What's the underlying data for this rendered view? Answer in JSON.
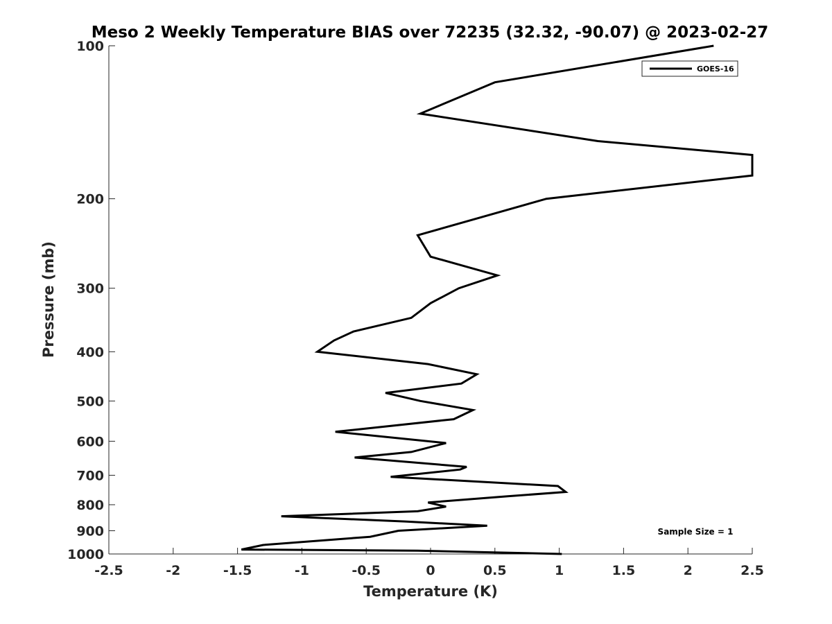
{
  "chart_data": {
    "type": "line",
    "title": "Meso 2 Weekly Temperature BIAS over 72235 (32.32, -90.07) @ 2023-02-27",
    "xlabel": "Temperature (K)",
    "ylabel": "Pressure (mb)",
    "xlim": [
      -2.5,
      2.5
    ],
    "ylim": [
      100,
      1000
    ],
    "y_scale": "log",
    "y_reversed": true,
    "grid": false,
    "legend_position": "top-right",
    "x_ticks": [
      "-2.5",
      "-2",
      "-1.5",
      "-1",
      "-0.5",
      "0",
      "0.5",
      "1",
      "1.5",
      "2",
      "2.5"
    ],
    "y_ticks": [
      "100",
      "200",
      "300",
      "400",
      "500",
      "600",
      "700",
      "800",
      "900",
      "1000"
    ],
    "annotation": "Sample Size = 1",
    "series": [
      {
        "name": "GOES-16",
        "color": "#000000",
        "points": [
          [
            2.2,
            100
          ],
          [
            0.5,
            118
          ],
          [
            -0.08,
            136
          ],
          [
            1.3,
            154
          ],
          [
            2.5,
            164
          ],
          [
            2.5,
            180
          ],
          [
            0.9,
            200
          ],
          [
            -0.1,
            236
          ],
          [
            0.0,
            260
          ],
          [
            0.52,
            283
          ],
          [
            0.22,
            300
          ],
          [
            0.0,
            321
          ],
          [
            -0.15,
            343
          ],
          [
            -0.6,
            365
          ],
          [
            -0.75,
            380
          ],
          [
            -0.88,
            400
          ],
          [
            -0.02,
            423
          ],
          [
            0.36,
            443
          ],
          [
            0.24,
            462
          ],
          [
            -0.35,
            482
          ],
          [
            -0.08,
            500
          ],
          [
            0.33,
            521
          ],
          [
            0.18,
            543
          ],
          [
            -0.74,
            575
          ],
          [
            0.12,
            605
          ],
          [
            -0.15,
            630
          ],
          [
            -0.59,
            646
          ],
          [
            0.28,
            674
          ],
          [
            0.23,
            682
          ],
          [
            -0.31,
            705
          ],
          [
            0.99,
            735
          ],
          [
            1.05,
            755
          ],
          [
            0.6,
            770
          ],
          [
            -0.02,
            792
          ],
          [
            0.12,
            807
          ],
          [
            -0.1,
            824
          ],
          [
            -1.16,
            843
          ],
          [
            -0.2,
            863
          ],
          [
            0.44,
            880
          ],
          [
            -0.25,
            900
          ],
          [
            -0.47,
            925
          ],
          [
            -1.3,
            960
          ],
          [
            -1.47,
            980
          ],
          [
            -0.1,
            985
          ],
          [
            1.02,
            1000
          ]
        ]
      }
    ]
  }
}
